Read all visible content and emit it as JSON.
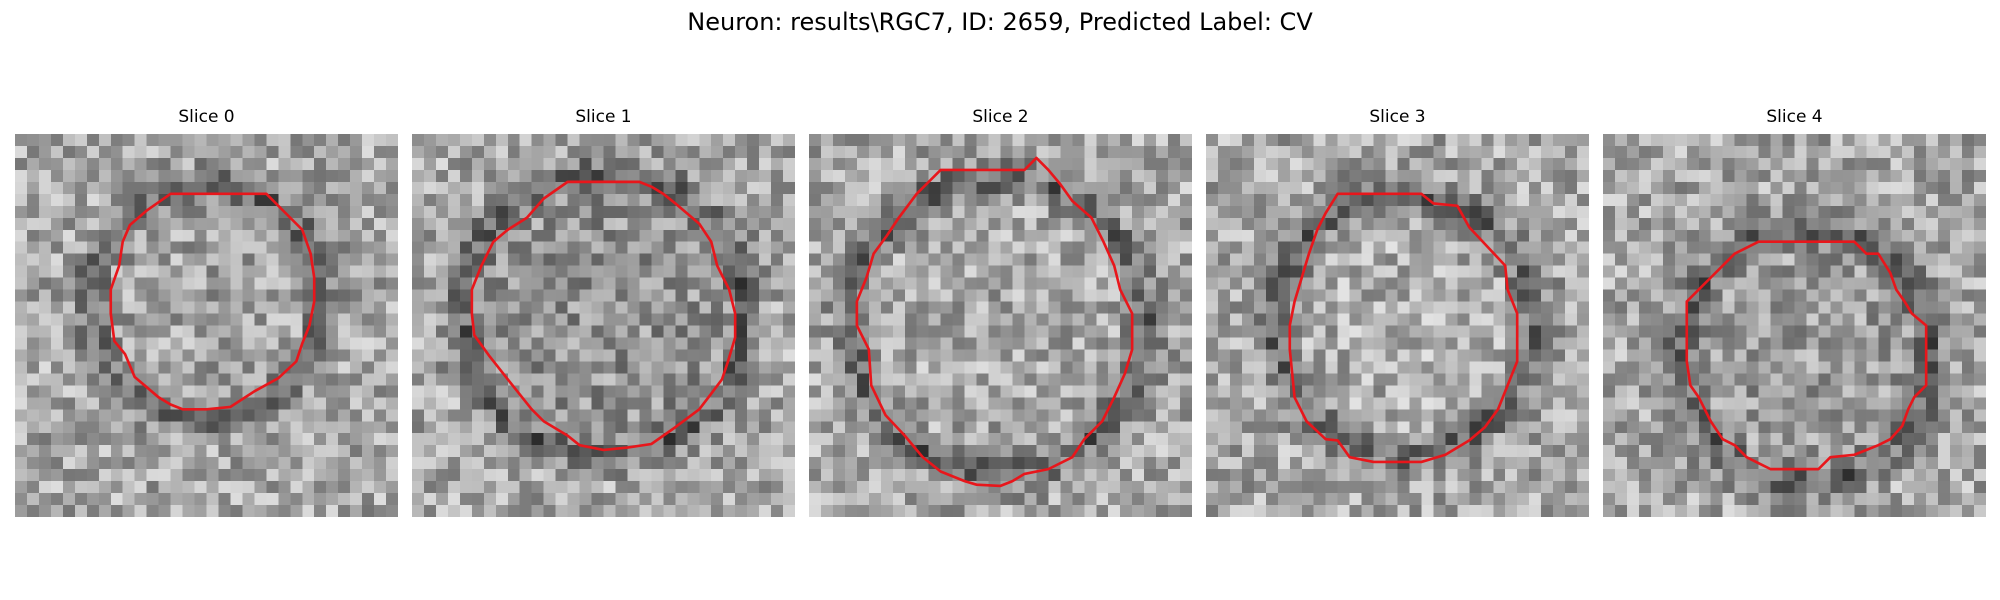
{
  "figure": {
    "title": "Neuron: results\\RGC7, ID: 2659, Predicted Label: CV"
  },
  "slices": [
    {
      "title": "Slice 0",
      "contour_color": "#e8161b"
    },
    {
      "title": "Slice 1",
      "contour_color": "#e8161b"
    },
    {
      "title": "Slice 2",
      "contour_color": "#e8161b"
    },
    {
      "title": "Slice 3",
      "contour_color": "#e8161b"
    },
    {
      "title": "Slice 4",
      "contour_color": "#e8161b"
    }
  ]
}
